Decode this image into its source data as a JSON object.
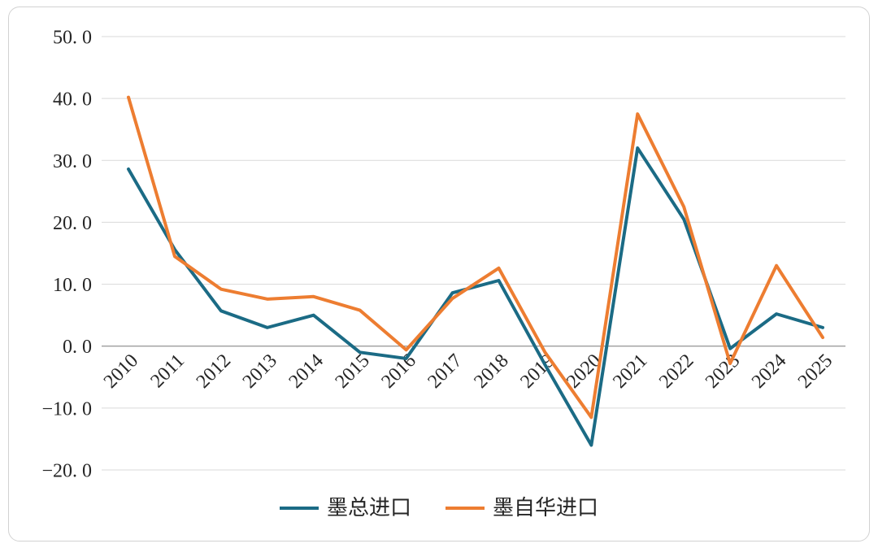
{
  "chart_data": {
    "type": "line",
    "title": "",
    "xlabel": "",
    "ylabel": "",
    "categories": [
      "2010",
      "2011",
      "2012",
      "2013",
      "2014",
      "2015",
      "2016",
      "2017",
      "2018",
      "2019",
      "2020",
      "2021",
      "2022",
      "2023",
      "2024",
      "2025"
    ],
    "series": [
      {
        "name": "墨总进口",
        "color": "#1b6b85",
        "values": [
          28.6,
          15.6,
          5.7,
          3.0,
          5.0,
          -1.0,
          -2.0,
          8.6,
          10.6,
          -3.0,
          -16.0,
          32.0,
          20.5,
          -0.4,
          5.2,
          3.0
        ]
      },
      {
        "name": "墨自华进口",
        "color": "#ed7d31",
        "values": [
          40.2,
          14.5,
          9.2,
          7.6,
          8.0,
          5.8,
          -0.6,
          7.7,
          12.6,
          -1.0,
          -11.5,
          37.5,
          22.5,
          -2.8,
          13.0,
          1.4
        ]
      }
    ],
    "ylim": [
      -20,
      50
    ],
    "yticks": [
      50,
      40,
      30,
      20,
      10,
      0,
      -10,
      -20
    ],
    "ytick_labels": [
      "50. 0",
      "40. 0",
      "30. 0",
      "20. 0",
      "10. 0",
      "0. 0",
      "−10. 0",
      "−20. 0"
    ],
    "grid": true,
    "grid_color": "#d9d9d9",
    "axis_zero_line_color": "#9e9e9e",
    "legend_position": "bottom",
    "x_label_rotation_deg": -45
  }
}
